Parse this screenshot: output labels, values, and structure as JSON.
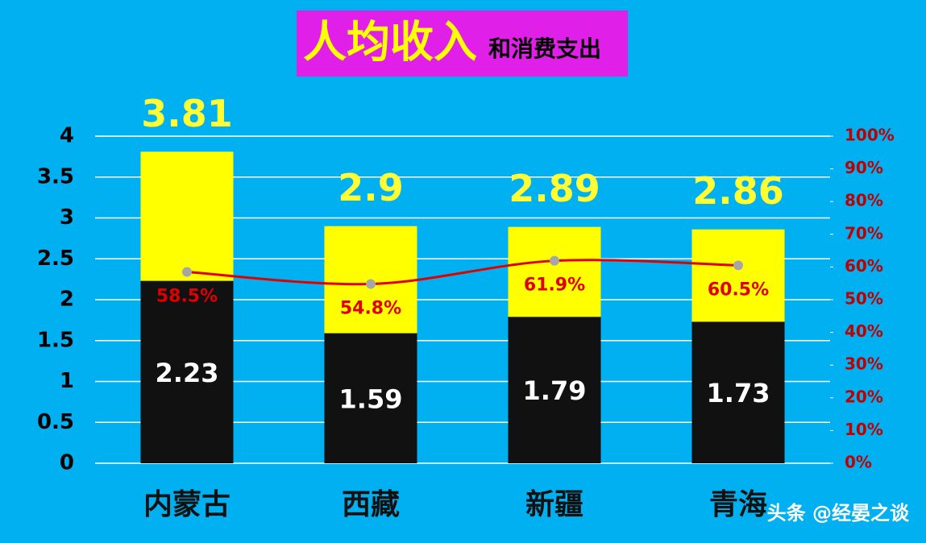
{
  "chart_data": {
    "type": "bar",
    "title": "人均收入",
    "subtitle": "和消费支出",
    "categories": [
      "内蒙古",
      "西藏",
      "新疆",
      "青海"
    ],
    "series": [
      {
        "color": "#ffff00",
        "values": [
          3.81,
          2.9,
          2.89,
          2.86
        ]
      },
      {
        "color": "#111111",
        "values": [
          2.23,
          1.59,
          1.79,
          1.73
        ]
      },
      {
        "type": "line",
        "axis": "y2",
        "color": "#e00000",
        "values": [
          58.5,
          54.8,
          61.9,
          60.5
        ],
        "value_labels": [
          "58.5%",
          "54.8%",
          "61.9%",
          "60.5%"
        ]
      }
    ],
    "ylim": [
      0,
      4
    ],
    "yticks": [
      0,
      0.5,
      1,
      1.5,
      2,
      2.5,
      3,
      3.5,
      4
    ],
    "y2lim": [
      0,
      100
    ],
    "y2ticks": [
      {
        "value": 0,
        "label": "0%"
      },
      {
        "value": 10,
        "label": "10%"
      },
      {
        "value": 20,
        "label": "20%"
      },
      {
        "value": 30,
        "label": "30%"
      },
      {
        "value": 40,
        "label": "40%"
      },
      {
        "value": 50,
        "label": "50%"
      },
      {
        "value": 60,
        "label": "60%"
      },
      {
        "value": 70,
        "label": "70%"
      },
      {
        "value": 80,
        "label": "80%"
      },
      {
        "value": 90,
        "label": "90%"
      },
      {
        "value": 100,
        "label": "100%"
      }
    ],
    "grid": true,
    "watermark": "头条 @经晏之谈"
  }
}
